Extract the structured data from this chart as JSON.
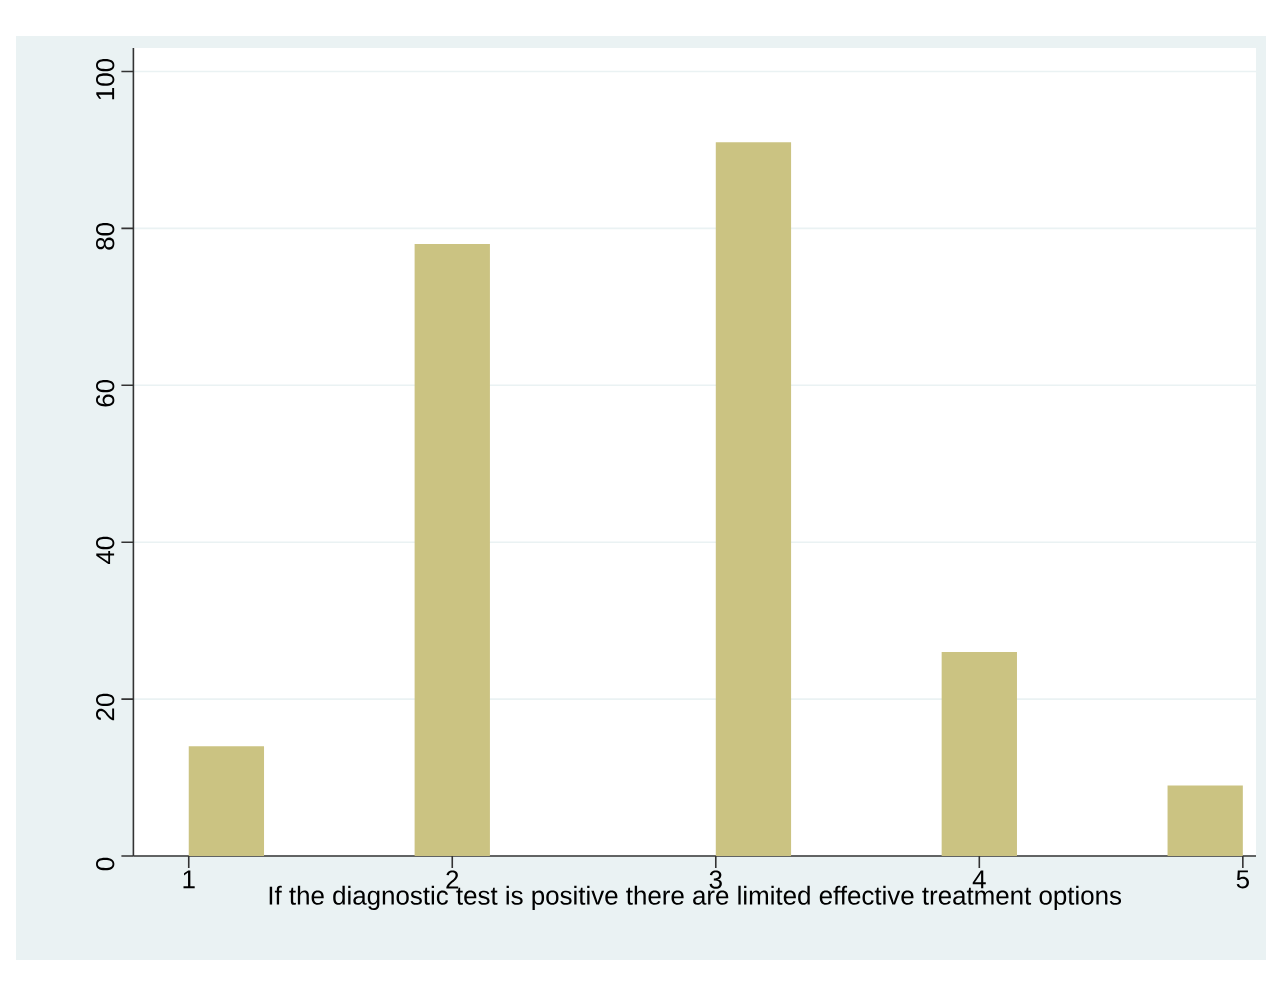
{
  "chart_data": {
    "type": "histogram",
    "xlabel": "If the diagnostic test is positive there are limited effective treatment options",
    "bins": [
      1,
      1.2857,
      1.5714,
      1.8571,
      2.1429,
      2.4286,
      2.7143,
      3,
      3.2857,
      3.5714,
      3.8571,
      4.1429,
      4.4286,
      4.7143,
      5
    ],
    "values": [
      14,
      0,
      0,
      78,
      0,
      0,
      0,
      91,
      0,
      0,
      26,
      0,
      0,
      9
    ],
    "color": "#cbc382",
    "xlim": [
      0.79,
      5.05
    ],
    "ylim": [
      0,
      103
    ],
    "xticks": [
      1,
      2,
      3,
      4,
      5
    ],
    "yticks": [
      0,
      20,
      40,
      60,
      80,
      100
    ],
    "grid": "y"
  }
}
